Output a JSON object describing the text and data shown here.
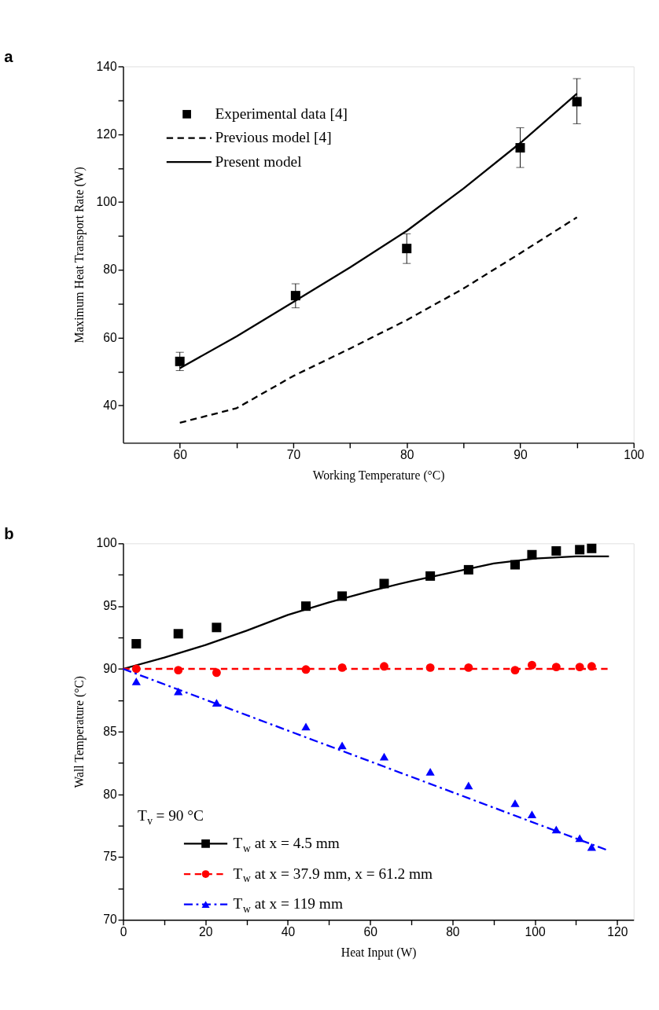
{
  "chart_data": [
    {
      "type": "line",
      "title": "a",
      "xlabel": "Working Temperature (°C)",
      "ylabel": "Maximum Heat Transport Rate (W)",
      "xlim": [
        55,
        100
      ],
      "xticks": [
        60,
        {
          "value": 65,
          "label": null
        },
        70,
        {
          "value": 75,
          "label": null
        },
        80,
        {
          "value": 85,
          "label": null
        },
        90,
        {
          "value": 95,
          "label": null
        },
        100
      ],
      "ylim": [
        29,
        140
      ],
      "yticks": [
        40,
        {
          "value": 50,
          "label": null
        },
        60,
        {
          "value": 70,
          "label": null
        },
        80,
        {
          "value": 90,
          "label": null
        },
        100,
        {
          "value": 110,
          "label": null
        },
        120,
        {
          "value": 130,
          "label": null
        },
        140
      ],
      "grid": false,
      "legend": "top left",
      "series": [
        {
          "name": "Experimental data [4]",
          "type": "scatter",
          "marker": "square",
          "color": "#000000",
          "x": [
            60,
            70.2,
            80,
            90,
            95
          ],
          "values": [
            53.0,
            72.4,
            86.3,
            116.0,
            129.6
          ],
          "errors": [
            [
              50.3,
              55.7
            ],
            [
              68.8,
              75.9
            ],
            [
              81.9,
              90.6
            ],
            [
              110.2,
              121.9
            ],
            [
              123.1,
              136.4
            ]
          ]
        },
        {
          "name": "Previous model [4]",
          "type": "line",
          "line_style": "dashed",
          "color": "#000000",
          "x": [
            60,
            65,
            70,
            75,
            80,
            85,
            90,
            95
          ],
          "values": [
            34.9,
            39.2,
            48.7,
            56.8,
            65.2,
            74.5,
            84.9,
            95.5
          ]
        },
        {
          "name": "Present model",
          "type": "line",
          "line_style": "solid",
          "color": "#000000",
          "x": [
            60,
            65,
            70,
            75,
            80,
            85,
            90,
            95
          ],
          "values": [
            51.0,
            60.4,
            70.5,
            80.7,
            91.5,
            104.0,
            117.4,
            132.0
          ]
        }
      ]
    },
    {
      "type": "line",
      "title": "b",
      "xlabel": "Heat Input (W)",
      "ylabel": "Wall Temperature (°C)",
      "legend_title": "T$_{v}$ = 90 °C",
      "xlim": [
        0,
        124
      ],
      "xticks": [
        0,
        {
          "value": 10,
          "label": null
        },
        20,
        {
          "value": 30,
          "label": null
        },
        40,
        {
          "value": 50,
          "label": null
        },
        60,
        {
          "value": 70,
          "label": null
        },
        80,
        {
          "value": 90,
          "label": null
        },
        100,
        {
          "value": 110,
          "label": null
        },
        120
      ],
      "ylim": [
        70,
        100
      ],
      "yticks": [
        70,
        {
          "value": 72.5,
          "label": null
        },
        75,
        {
          "value": 77.5,
          "label": null
        },
        80,
        {
          "value": 82.5,
          "label": null
        },
        85,
        {
          "value": 87.5,
          "label": null
        },
        90,
        {
          "value": 92.5,
          "label": null
        },
        95,
        {
          "value": 97.5,
          "label": null
        },
        100
      ],
      "grid": false,
      "legend": "bottom left",
      "series": [
        {
          "name": "T$_{w}$ at x = 4.5 mm",
          "type": "scatter",
          "marker": "square",
          "color": "#000000",
          "x": [
            3.2,
            13.4,
            22.7,
            44.4,
            53.2,
            63.4,
            74.6,
            83.9,
            95.2,
            99.3,
            105.2,
            110.9,
            113.8
          ],
          "values": [
            92.0,
            92.8,
            93.3,
            95.0,
            95.8,
            96.8,
            97.4,
            97.9,
            98.3,
            99.1,
            99.4,
            99.5,
            99.6
          ]
        },
        {
          "type": "line",
          "line_style": "solid",
          "color": "#000000",
          "x": [
            0,
            10,
            20,
            30,
            40,
            50,
            60,
            70,
            80,
            90,
            100,
            110,
            118
          ],
          "values": [
            90.0,
            90.9,
            91.9,
            93.05,
            94.3,
            95.3,
            96.2,
            97.0,
            97.7,
            98.4,
            98.8,
            98.96,
            98.96
          ]
        },
        {
          "name": "T$_{w}$ at x = 37.9 mm, x = 61.2 mm",
          "type": "scatter",
          "marker": "circle",
          "color": "#ff0000",
          "x": [
            3.2,
            13.4,
            22.7,
            44.4,
            53.2,
            63.4,
            74.6,
            83.9,
            95.2,
            99.3,
            105.2,
            110.9,
            113.8
          ],
          "values": [
            90.0,
            89.9,
            89.7,
            89.95,
            90.1,
            90.2,
            90.1,
            90.1,
            89.9,
            90.3,
            90.15,
            90.15,
            90.2
          ]
        },
        {
          "type": "line",
          "line_style": "dashed",
          "color": "#ff0000",
          "x": [
            0,
            118
          ],
          "values": [
            90.0,
            90.0
          ]
        },
        {
          "name": "T$_{w}$ at x = 119 mm",
          "type": "scatter",
          "marker": "triangle",
          "color": "#0000ff",
          "x": [
            3.2,
            13.4,
            22.7,
            44.4,
            53.2,
            63.4,
            74.6,
            83.9,
            95.2,
            99.3,
            105.2,
            110.9,
            113.8
          ],
          "values": [
            89.0,
            88.2,
            87.3,
            85.4,
            83.9,
            83.0,
            81.8,
            80.7,
            79.3,
            78.4,
            77.2,
            76.5,
            75.8
          ]
        },
        {
          "type": "line",
          "line_style": "dashdot",
          "color": "#0000ff",
          "x": [
            0,
            118
          ],
          "values": [
            90.0,
            75.5
          ]
        }
      ]
    }
  ]
}
